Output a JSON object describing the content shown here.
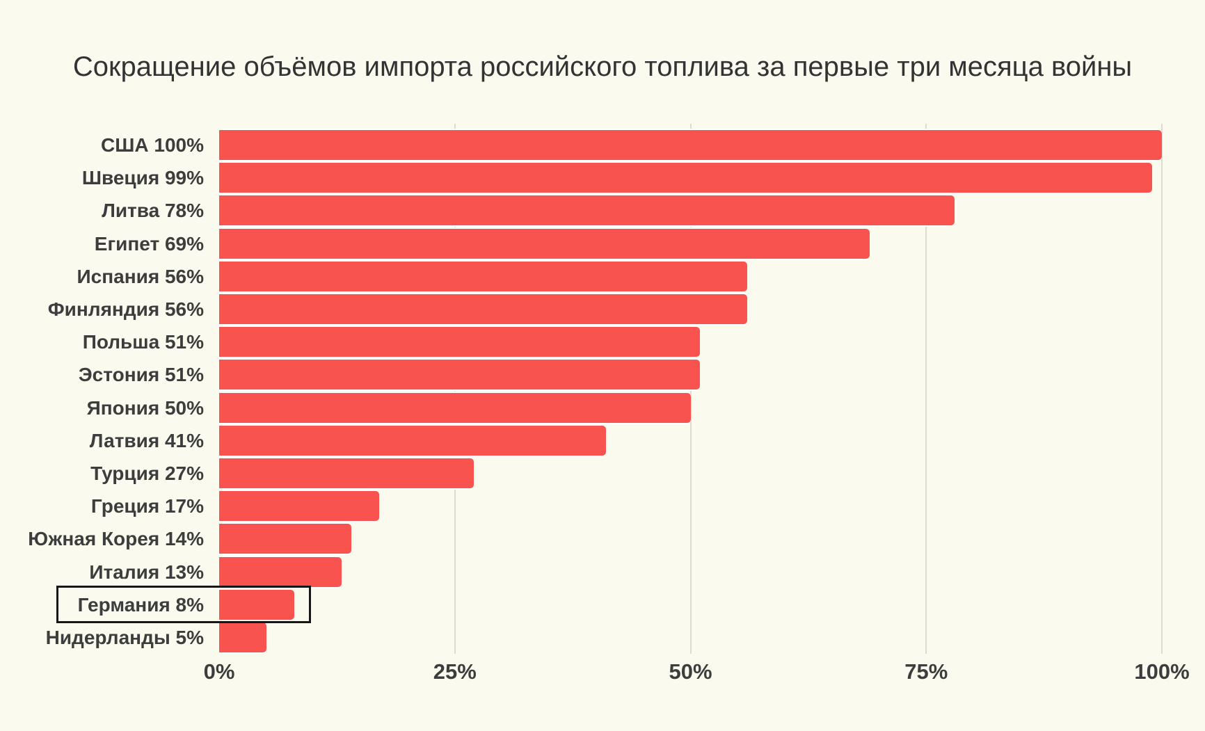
{
  "chart_data": {
    "type": "bar",
    "orientation": "horizontal",
    "title": "Сокращение объёмов импорта российского топлива за первые три месяца войны",
    "categories": [
      "США",
      "Швеция",
      "Литва",
      "Египет",
      "Испания",
      "Финляндия",
      "Польша",
      "Эстония",
      "Япония",
      "Латвия",
      "Турция",
      "Греция",
      "Южная Корея",
      "Италия",
      "Германия",
      "Нидерланды"
    ],
    "values": [
      100,
      99,
      78,
      69,
      56,
      56,
      51,
      51,
      50,
      41,
      27,
      17,
      14,
      13,
      8,
      5
    ],
    "bars": [
      {
        "country": "США",
        "value": 100,
        "display": "США 100%",
        "highlighted": false
      },
      {
        "country": "Швеция",
        "value": 99,
        "display": "Швеция 99%",
        "highlighted": false
      },
      {
        "country": "Литва",
        "value": 78,
        "display": "Литва 78%",
        "highlighted": false
      },
      {
        "country": "Египет",
        "value": 69,
        "display": "Египет 69%",
        "highlighted": false
      },
      {
        "country": "Испания",
        "value": 56,
        "display": "Испания 56%",
        "highlighted": false
      },
      {
        "country": "Финляндия",
        "value": 56,
        "display": "Финляндия 56%",
        "highlighted": false
      },
      {
        "country": "Польша",
        "value": 51,
        "display": "Польша 51%",
        "highlighted": false
      },
      {
        "country": "Эстония",
        "value": 51,
        "display": "Эстония 51%",
        "highlighted": false
      },
      {
        "country": "Япония",
        "value": 50,
        "display": "Япония 50%",
        "highlighted": false
      },
      {
        "country": "Латвия",
        "value": 41,
        "display": "Латвия 41%",
        "highlighted": false
      },
      {
        "country": "Турция",
        "value": 27,
        "display": "Турция 27%",
        "highlighted": false
      },
      {
        "country": "Греция",
        "value": 17,
        "display": "Греция 17%",
        "highlighted": false
      },
      {
        "country": "Южная Корея",
        "value": 14,
        "display": "Южная Корея 14%",
        "highlighted": false
      },
      {
        "country": "Италия",
        "value": 13,
        "display": "Италия 13%",
        "highlighted": false
      },
      {
        "country": "Германия",
        "value": 8,
        "display": "Германия 8%",
        "highlighted": true
      },
      {
        "country": "Нидерланды",
        "value": 5,
        "display": "Нидерланды 5%",
        "highlighted": false
      }
    ],
    "xlabel": "",
    "ylabel": "",
    "xlim": [
      0,
      100
    ],
    "xticks": [
      {
        "value": 0,
        "label": "0%"
      },
      {
        "value": 25,
        "label": "25%"
      },
      {
        "value": 50,
        "label": "50%"
      },
      {
        "value": 75,
        "label": "75%"
      },
      {
        "value": 100,
        "label": "100%"
      }
    ],
    "grid": "vertical gridlines at ticks, behind bars",
    "legend": "none",
    "highlight": {
      "country": "Германия",
      "style": "black outline box around label and bar"
    },
    "colors": {
      "bar": "#f9534f",
      "background": "#fafaef",
      "gridline": "#dcdcd2",
      "label_text": "#3d3d3d",
      "title_text": "#333333",
      "highlight_border": "#161616",
      "bar_separator": "#ffffff"
    }
  }
}
